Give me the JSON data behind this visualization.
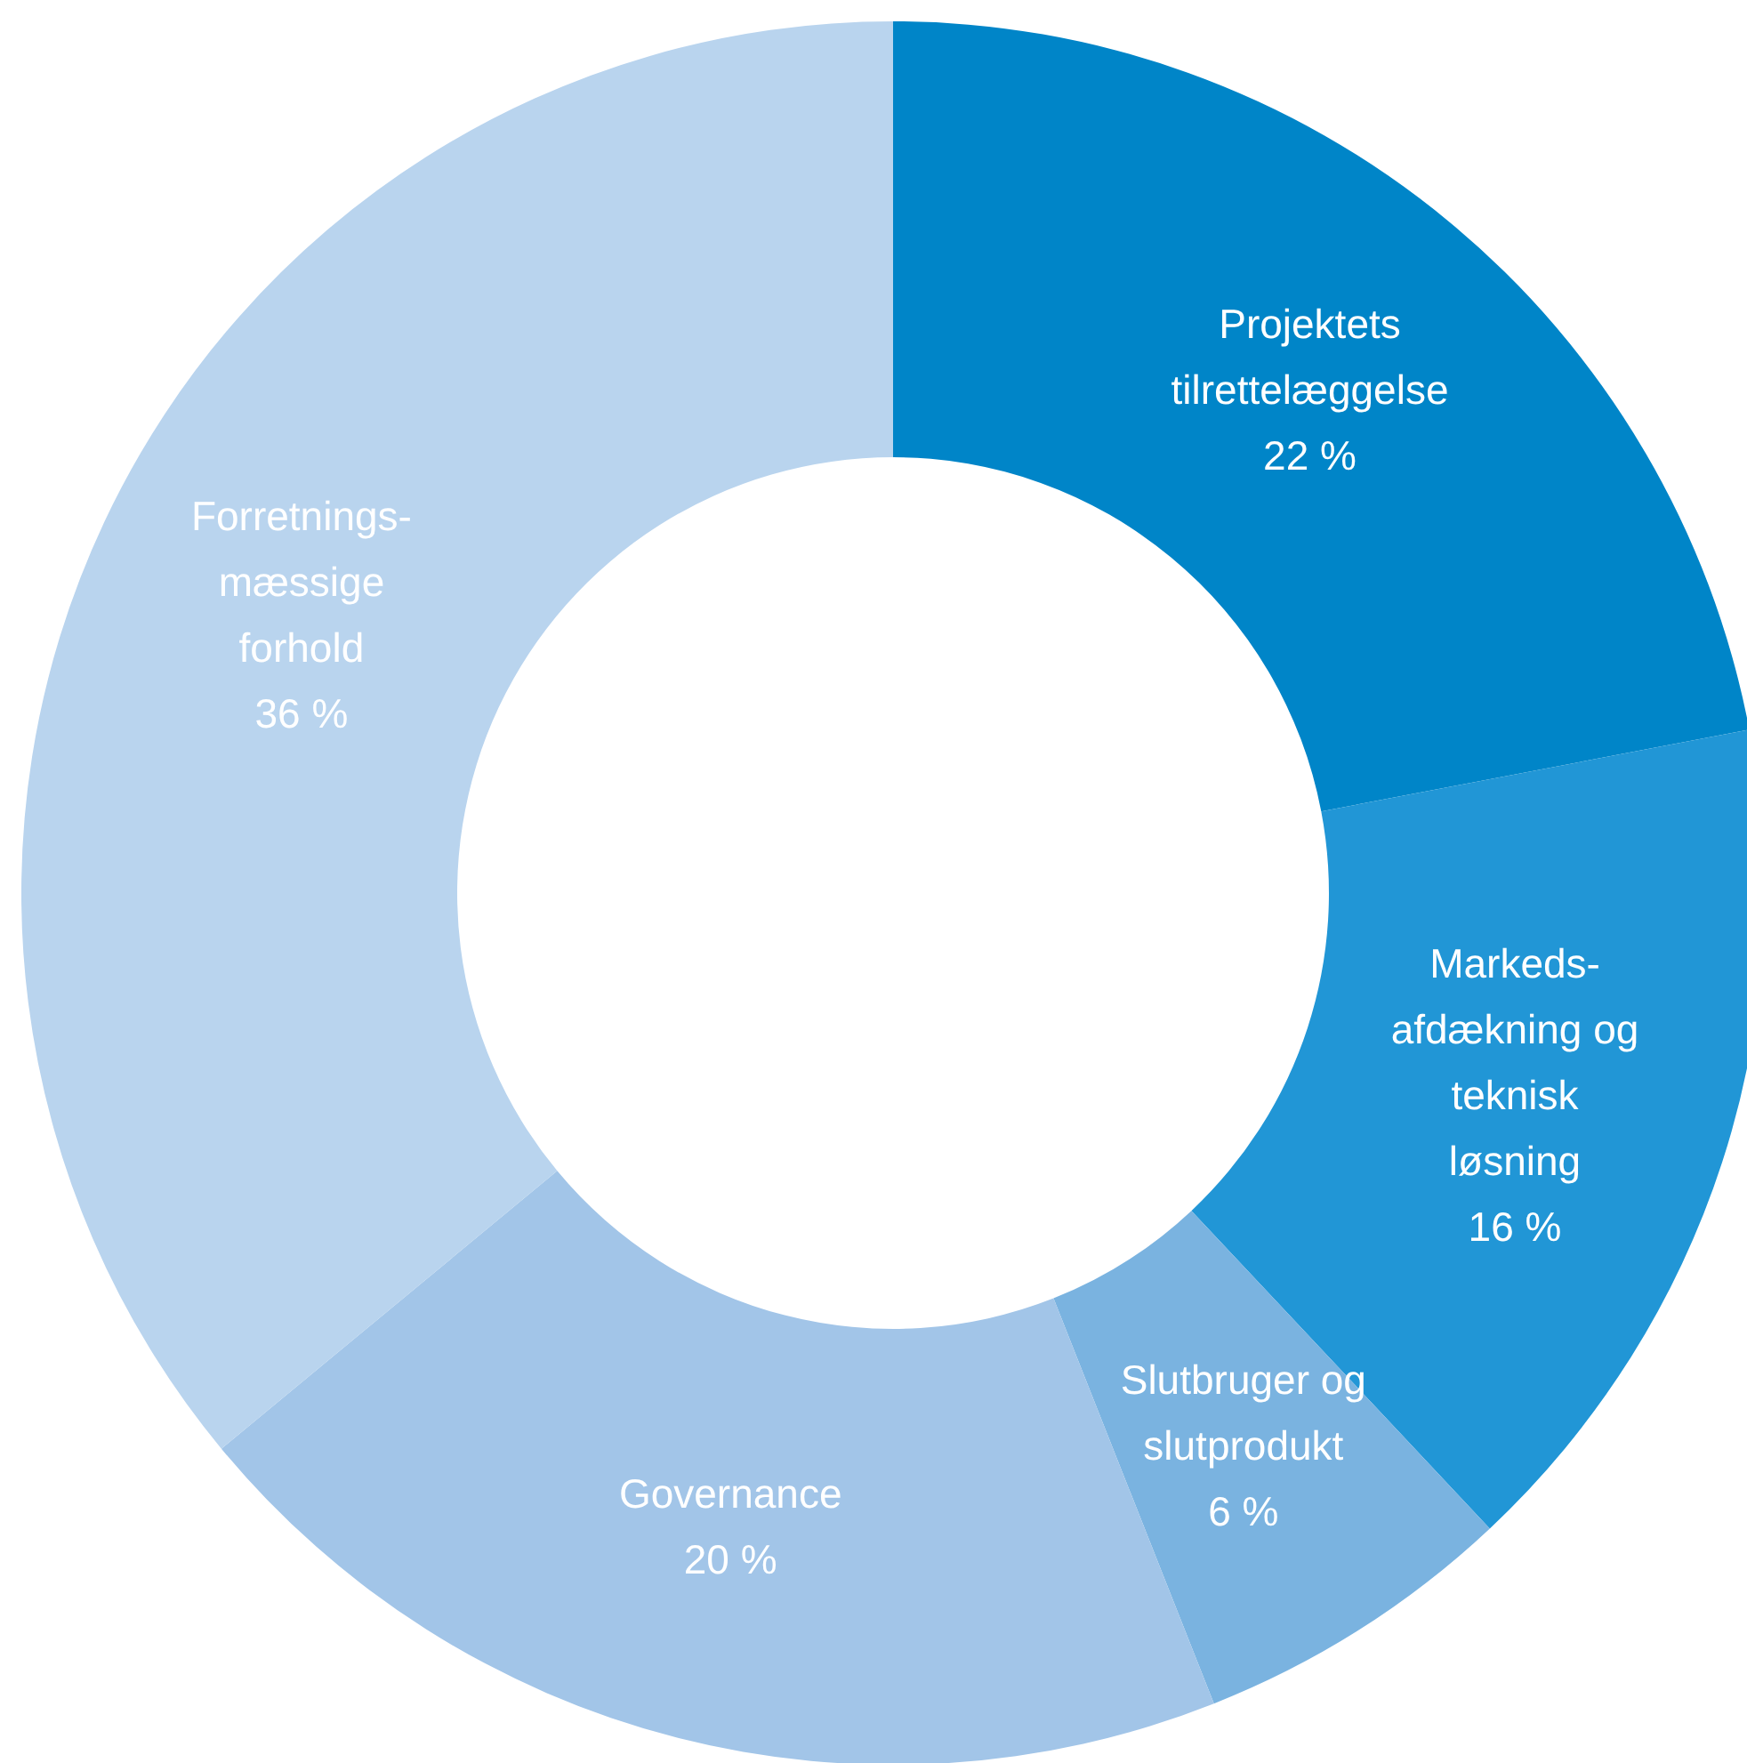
{
  "chart_data": {
    "type": "donut",
    "categories": [
      "Projektets tilrettelæggelse",
      "Markeds-afdækning og teknisk løsning",
      "Slutbruger og slutprodukt",
      "Governance",
      "Forretnings-mæssige forhold"
    ],
    "values": [
      22,
      16,
      6,
      20,
      36
    ],
    "value_labels": [
      "22 %",
      "16 %",
      "6 %",
      "20 %",
      "36 %"
    ],
    "colors": [
      "#0085c8",
      "#2196d6",
      "#7ab3e0",
      "#a2c5e8",
      "#b9d4ee"
    ],
    "legend": false
  }
}
